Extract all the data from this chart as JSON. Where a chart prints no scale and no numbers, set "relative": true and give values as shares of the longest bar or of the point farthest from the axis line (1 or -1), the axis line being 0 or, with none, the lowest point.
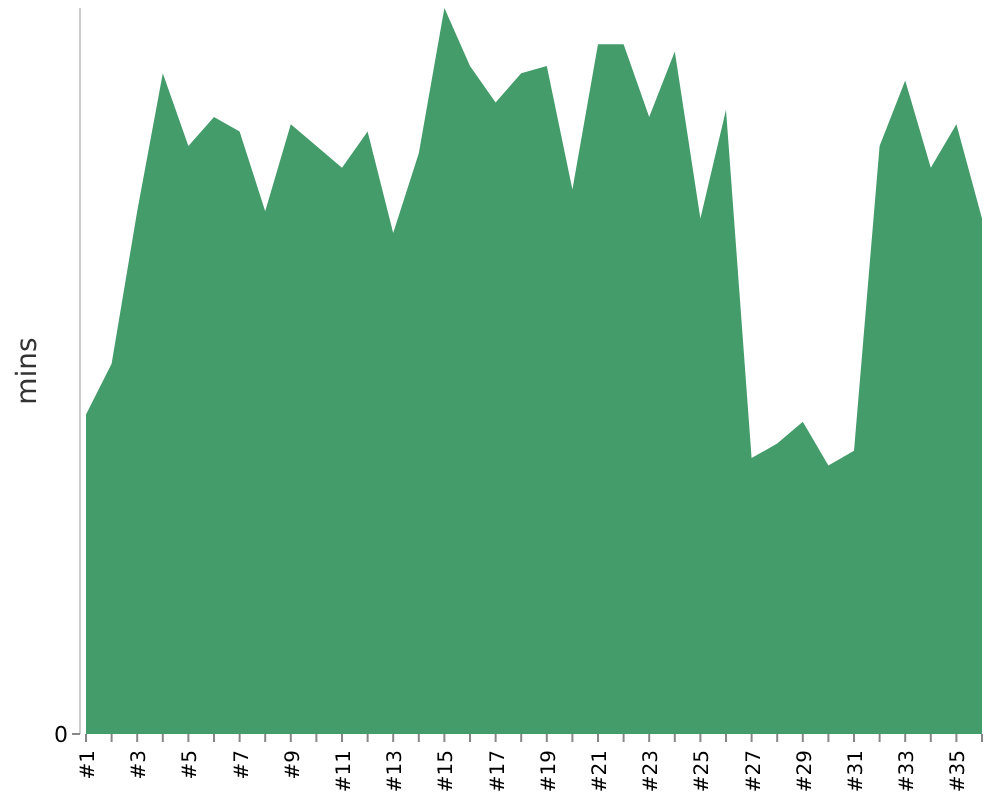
{
  "chart_data": {
    "type": "area",
    "relative": true,
    "ylabel": "mins",
    "annotations": [
      "0"
    ],
    "categories": [
      "#1",
      null,
      "#3",
      null,
      "#5",
      null,
      "#7",
      null,
      "#9",
      null,
      "#11",
      null,
      "#13",
      null,
      "#15",
      null,
      "#17",
      null,
      "#19",
      null,
      "#21",
      null,
      "#23",
      null,
      "#25",
      null,
      "#27",
      null,
      "#29",
      null,
      "#31",
      null,
      "#33",
      null,
      "#35",
      null
    ],
    "series": [
      {
        "color": "#449c6b",
        "values": [
          0.44,
          0.51,
          0.72,
          0.91,
          0.81,
          0.85,
          0.83,
          0.72,
          0.84,
          0.81,
          0.78,
          0.83,
          0.69,
          0.8,
          1,
          0.92,
          0.87,
          0.91,
          0.92,
          0.75,
          0.95,
          0.95,
          0.85,
          0.94,
          0.71,
          0.86,
          0.38,
          0.4,
          0.43,
          0.37,
          0.39,
          0.81,
          0.9,
          0.78,
          0.84,
          0.71
        ]
      }
    ]
  }
}
